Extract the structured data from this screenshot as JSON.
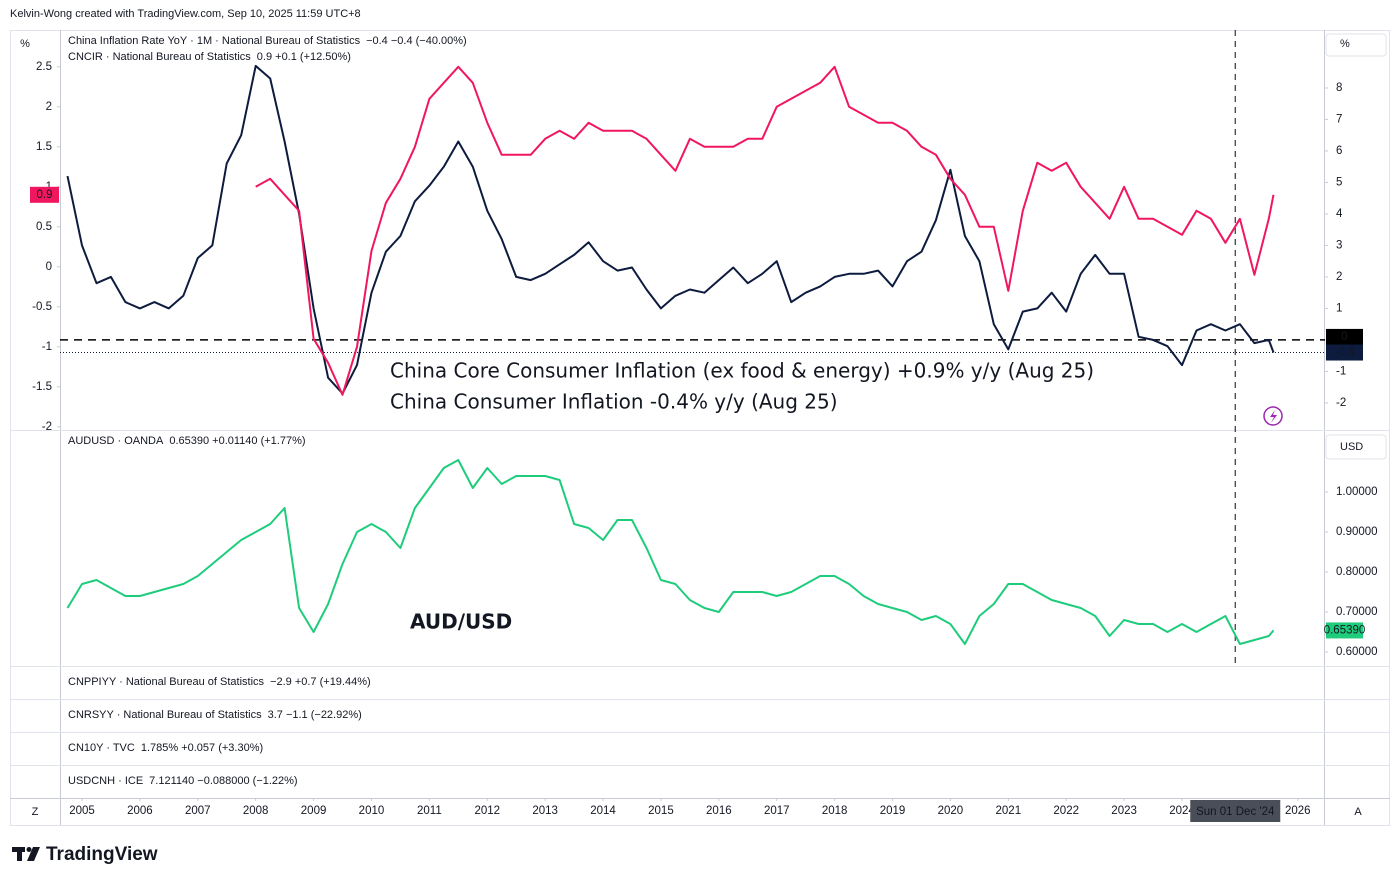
{
  "header": {
    "credit": "Kelvin-Wong created with TradingView.com, Sep 10, 2025 11:59 UTC+8"
  },
  "chart_data": [
    {
      "type": "line",
      "x": [
        2004.75,
        2005,
        2005.25,
        2005.5,
        2005.75,
        2006,
        2006.25,
        2006.5,
        2006.75,
        2007,
        2007.25,
        2007.5,
        2007.75,
        2008,
        2008.25,
        2008.5,
        2008.75,
        2009,
        2009.25,
        2009.5,
        2009.75,
        2010,
        2010.25,
        2010.5,
        2010.75,
        2011,
        2011.25,
        2011.5,
        2011.75,
        2012,
        2012.25,
        2012.5,
        2012.75,
        2013,
        2013.25,
        2013.5,
        2013.75,
        2014,
        2014.25,
        2014.5,
        2014.75,
        2015,
        2015.25,
        2015.5,
        2015.75,
        2016,
        2016.25,
        2016.5,
        2016.75,
        2017,
        2017.25,
        2017.5,
        2017.75,
        2018,
        2018.25,
        2018.5,
        2018.75,
        2019,
        2019.25,
        2019.5,
        2019.75,
        2020,
        2020.25,
        2020.5,
        2020.75,
        2021,
        2021.25,
        2021.5,
        2021.75,
        2022,
        2022.25,
        2022.5,
        2022.75,
        2023,
        2023.25,
        2023.5,
        2023.75,
        2024,
        2024.25,
        2024.5,
        2024.75,
        2025,
        2025.25,
        2025.5,
        2025.58
      ],
      "xlim": [
        2004.62,
        2026.47
      ],
      "xticks": [
        2005,
        2006,
        2007,
        2008,
        2009,
        2010,
        2011,
        2012,
        2013,
        2014,
        2015,
        2016,
        2017,
        2018,
        2019,
        2020,
        2021,
        2022,
        2023,
        2024,
        2026
      ],
      "ylim": [
        -2.04,
        2.96
      ],
      "yticks": [
        2.5,
        2,
        1.5,
        1,
        0.5,
        0,
        -0.5,
        -1,
        -1.5,
        -2
      ],
      "y_unit": "%",
      "y_side": "left",
      "y2lim": [
        -2.86,
        9.84
      ],
      "y2ticks": [
        8,
        7,
        6,
        5,
        4,
        3,
        2,
        1,
        -1,
        -2
      ],
      "y2_unit": "%",
      "series": [
        {
          "name": "China Inflation Rate YoY · 1M · National Bureau of Statistics",
          "stats": "−0.4  −0.4 (−40.00%)",
          "color": "#0d1b3e",
          "axis": "y2",
          "price_line": true,
          "values": [
            5.2,
            3.0,
            1.8,
            2.0,
            1.2,
            1.0,
            1.2,
            1.0,
            1.4,
            2.6,
            3.0,
            5.6,
            6.5,
            8.7,
            8.3,
            6.3,
            4.0,
            1.0,
            -1.2,
            -1.7,
            -0.8,
            1.5,
            2.8,
            3.3,
            4.4,
            4.9,
            5.5,
            6.3,
            5.5,
            4.1,
            3.2,
            2.0,
            1.9,
            2.1,
            2.4,
            2.7,
            3.1,
            2.5,
            2.2,
            2.3,
            1.6,
            1.0,
            1.4,
            1.6,
            1.5,
            1.9,
            2.3,
            1.8,
            2.1,
            2.5,
            1.2,
            1.5,
            1.7,
            2.0,
            2.1,
            2.1,
            2.2,
            1.7,
            2.5,
            2.8,
            3.8,
            5.4,
            3.3,
            2.5,
            0.5,
            -0.3,
            0.9,
            1.0,
            1.5,
            0.9,
            2.1,
            2.7,
            2.1,
            2.1,
            0.1,
            0.0,
            -0.2,
            -0.8,
            0.3,
            0.5,
            0.3,
            0.5,
            -0.1,
            0.0,
            -0.4
          ]
        },
        {
          "name": "CNCIR · National Bureau of Statistics",
          "stats": "0.9  +0.1 (+12.50%)",
          "color": "#f0175e",
          "axis": "y",
          "values": [
            null,
            null,
            null,
            null,
            null,
            null,
            null,
            null,
            null,
            null,
            null,
            null,
            null,
            1.0,
            1.1,
            0.9,
            0.7,
            -0.9,
            -1.2,
            -1.6,
            -1.0,
            0.2,
            0.8,
            1.1,
            1.5,
            2.1,
            2.3,
            2.5,
            2.3,
            1.8,
            1.4,
            1.4,
            1.4,
            1.6,
            1.7,
            1.6,
            1.8,
            1.7,
            1.7,
            1.7,
            1.6,
            1.4,
            1.2,
            1.6,
            1.5,
            1.5,
            1.5,
            1.6,
            1.6,
            2.0,
            2.1,
            2.2,
            2.3,
            2.5,
            2.0,
            1.9,
            1.8,
            1.8,
            1.7,
            1.5,
            1.4,
            1.1,
            0.9,
            0.5,
            0.5,
            -0.3,
            0.7,
            1.3,
            1.2,
            1.3,
            1.0,
            0.8,
            0.6,
            1.0,
            0.6,
            0.6,
            0.5,
            0.4,
            0.7,
            0.6,
            0.3,
            0.6,
            -0.1,
            0.6,
            0.9
          ]
        }
      ],
      "hlines": [
        {
          "value": 0,
          "axis": "y2"
        }
      ],
      "crosshair_x": 2024.92,
      "annotations": [
        {
          "text": "China Core Consumer Inflation (ex food & energy) +0.9% y/y (Aug 25)",
          "color": "#f0175e"
        },
        {
          "text": "China Consumer Inflation -0.4% y/y (Aug 25)",
          "color": "#0d1b3e"
        }
      ]
    },
    {
      "type": "line",
      "x": [
        2004.75,
        2005,
        2005.25,
        2005.5,
        2005.75,
        2006,
        2006.25,
        2006.5,
        2006.75,
        2007,
        2007.25,
        2007.5,
        2007.75,
        2008,
        2008.25,
        2008.5,
        2008.75,
        2009,
        2009.25,
        2009.5,
        2009.75,
        2010,
        2010.25,
        2010.5,
        2010.75,
        2011,
        2011.25,
        2011.5,
        2011.75,
        2012,
        2012.25,
        2012.5,
        2012.75,
        2013,
        2013.25,
        2013.5,
        2013.75,
        2014,
        2014.25,
        2014.5,
        2014.75,
        2015,
        2015.25,
        2015.5,
        2015.75,
        2016,
        2016.25,
        2016.5,
        2016.75,
        2017,
        2017.25,
        2017.5,
        2017.75,
        2018,
        2018.25,
        2018.5,
        2018.75,
        2019,
        2019.25,
        2019.5,
        2019.75,
        2020,
        2020.25,
        2020.5,
        2020.75,
        2021,
        2021.25,
        2021.5,
        2021.75,
        2022,
        2022.25,
        2022.5,
        2022.75,
        2023,
        2023.25,
        2023.5,
        2023.75,
        2024,
        2024.25,
        2024.5,
        2024.75,
        2025,
        2025.25,
        2025.5,
        2025.58
      ],
      "xlim": [
        2004.62,
        2026.47
      ],
      "ylim": [
        0.565,
        1.155
      ],
      "y_unit": "USD",
      "y_side": "right",
      "yticks": [
        {
          "value": 1,
          "label": "1.00000"
        },
        {
          "value": 0.9,
          "label": "0.90000"
        },
        {
          "value": 0.8,
          "label": "0.80000"
        },
        {
          "value": 0.7,
          "label": "0.70000"
        },
        {
          "value": 0.6,
          "label": "0.60000"
        }
      ],
      "series": [
        {
          "name": "AUDUSD · OANDA",
          "stats": "0.65390  +0.01140 (+1.77%)",
          "color": "#1fcc7c",
          "axis": "y",
          "last_value_label": "0.65390",
          "values": [
            0.71,
            0.77,
            0.78,
            0.76,
            0.74,
            0.74,
            0.75,
            0.76,
            0.77,
            0.79,
            0.82,
            0.85,
            0.88,
            0.9,
            0.92,
            0.96,
            0.71,
            0.65,
            0.72,
            0.82,
            0.9,
            0.92,
            0.9,
            0.86,
            0.96,
            1.01,
            1.06,
            1.08,
            1.01,
            1.06,
            1.02,
            1.04,
            1.04,
            1.04,
            1.03,
            0.92,
            0.91,
            0.88,
            0.93,
            0.93,
            0.86,
            0.78,
            0.77,
            0.73,
            0.71,
            0.7,
            0.75,
            0.75,
            0.75,
            0.74,
            0.75,
            0.77,
            0.79,
            0.79,
            0.77,
            0.74,
            0.72,
            0.71,
            0.7,
            0.68,
            0.69,
            0.67,
            0.62,
            0.69,
            0.72,
            0.77,
            0.77,
            0.75,
            0.73,
            0.72,
            0.71,
            0.69,
            0.64,
            0.68,
            0.67,
            0.67,
            0.65,
            0.67,
            0.65,
            0.67,
            0.69,
            0.62,
            0.63,
            0.64,
            0.6539
          ]
        }
      ],
      "annotations": [
        {
          "text": "AUD/USD",
          "color": "#1fcc7c"
        }
      ]
    }
  ],
  "indicators": [
    {
      "name": "CNPPIYY · National Bureau of Statistics",
      "stats": "−2.9  +0.7 (+19.44%)",
      "color": "#f0a30a"
    },
    {
      "name": "CNRSYY · National Bureau of Statistics",
      "stats": "3.7  −1.1 (−22.92%)",
      "color": "#3b5bd6"
    },
    {
      "name": "CN10Y · TVC",
      "stats": "1.785%  +0.057 (+3.30%)",
      "color": "#2a9fd0"
    },
    {
      "name": "USDCNH · ICE",
      "stats": "7.121140  −0.088000 (−1.22%)",
      "color": "#7b1fa2"
    }
  ],
  "time_axis": {
    "crosshair_label": "Sun 01 Dec '24"
  },
  "controls": {
    "left": "Z",
    "right": "A"
  },
  "footer": {
    "logo": "TradingView"
  }
}
